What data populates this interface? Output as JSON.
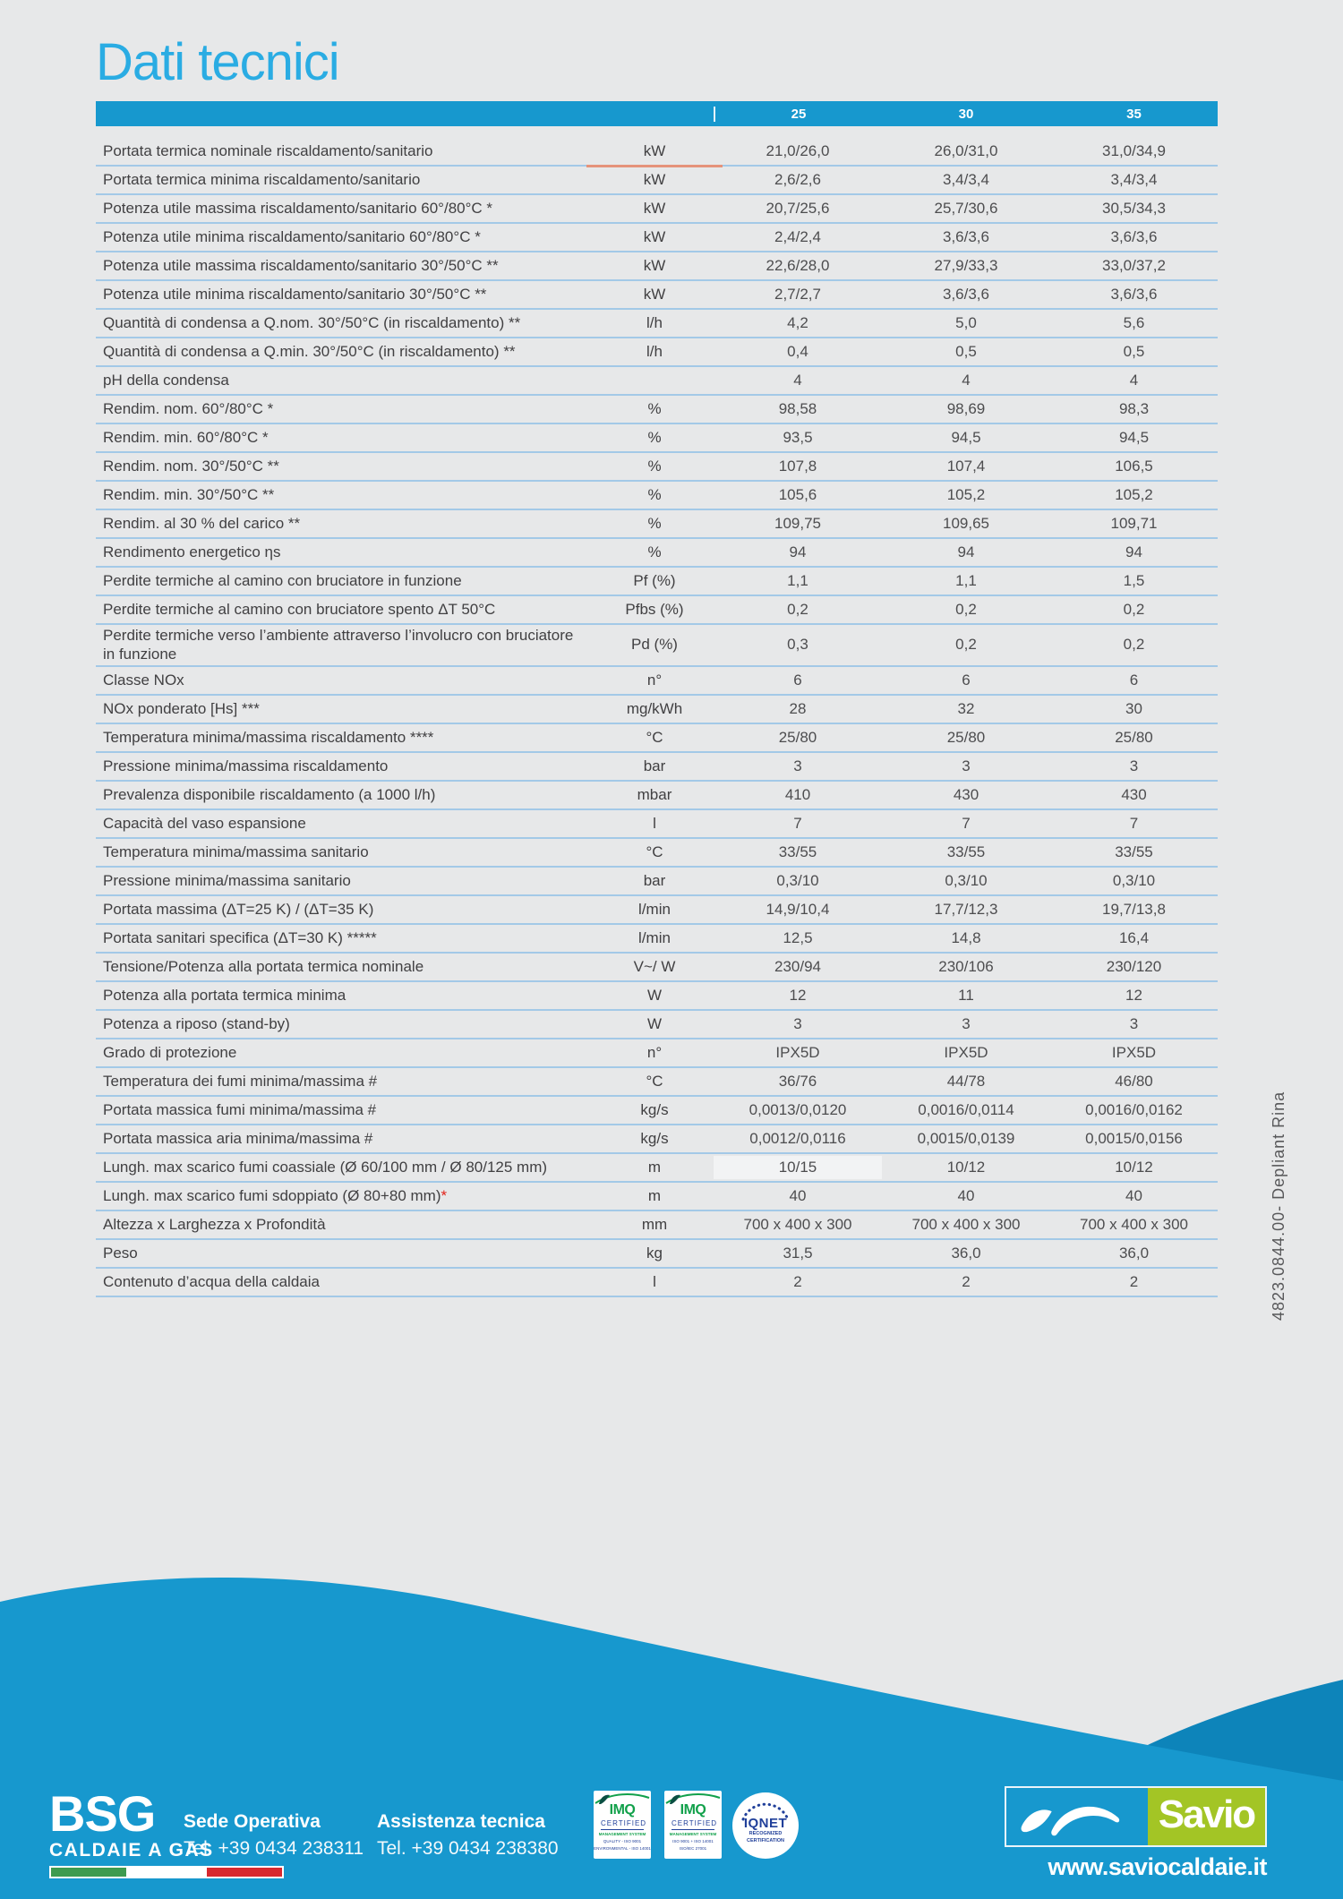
{
  "page": {
    "title": "Dati tecnici",
    "side_code": "4823.0844.00- Depliant Rina"
  },
  "colors": {
    "header_blue": "#1798CE",
    "title_blue": "#2AACE3",
    "row_line_blue": "#A3C9E7",
    "accent_orange": "#E5937A",
    "savio_green": "#A3C525",
    "imq_green": "#12A14B",
    "navy": "#21409A",
    "flag_green": "#3E9B4F",
    "flag_red": "#D7282F"
  },
  "table": {
    "header_cols": [
      "25",
      "30",
      "35"
    ],
    "rows": [
      {
        "label": "Portata termica nominale riscaldamento/sanitario",
        "unit": "kW",
        "values": [
          "21,0/26,0",
          "26,0/31,0",
          "31,0/34,9"
        ]
      },
      {
        "label": "Portata termica minima riscaldamento/sanitario",
        "unit": "kW",
        "values": [
          "2,6/2,6",
          "3,4/3,4",
          "3,4/3,4"
        ]
      },
      {
        "label": "Potenza utile massima riscaldamento/sanitario 60°/80°C *",
        "unit": "kW",
        "values": [
          "20,7/25,6",
          "25,7/30,6",
          "30,5/34,3"
        ]
      },
      {
        "label": "Potenza utile minima riscaldamento/sanitario 60°/80°C *",
        "unit": "kW",
        "values": [
          "2,4/2,4",
          "3,6/3,6",
          "3,6/3,6"
        ]
      },
      {
        "label": "Potenza utile massima riscaldamento/sanitario 30°/50°C **",
        "unit": "kW",
        "values": [
          "22,6/28,0",
          "27,9/33,3",
          "33,0/37,2"
        ]
      },
      {
        "label": "Potenza utile minima riscaldamento/sanitario 30°/50°C **",
        "unit": "kW",
        "values": [
          "2,7/2,7",
          "3,6/3,6",
          "3,6/3,6"
        ]
      },
      {
        "label": "Quantità di condensa a Q.nom. 30°/50°C (in riscaldamento) **",
        "unit": "l/h",
        "values": [
          "4,2",
          "5,0",
          "5,6"
        ]
      },
      {
        "label": "Quantità di condensa a Q.min. 30°/50°C (in riscaldamento) **",
        "unit": "l/h",
        "values": [
          "0,4",
          "0,5",
          "0,5"
        ]
      },
      {
        "label": "pH della condensa",
        "unit": "",
        "values": [
          "4",
          "4",
          "4"
        ]
      },
      {
        "label": "Rendim. nom. 60°/80°C *",
        "unit": "%",
        "values": [
          "98,58",
          "98,69",
          "98,3"
        ]
      },
      {
        "label": "Rendim. min. 60°/80°C *",
        "unit": "%",
        "values": [
          "93,5",
          "94,5",
          "94,5"
        ]
      },
      {
        "label": "Rendim. nom. 30°/50°C **",
        "unit": "%",
        "values": [
          "107,8",
          "107,4",
          "106,5"
        ]
      },
      {
        "label": "Rendim. min. 30°/50°C **",
        "unit": "%",
        "values": [
          "105,6",
          "105,2",
          "105,2"
        ]
      },
      {
        "label": "Rendim. al 30 % del carico **",
        "unit": "%",
        "values": [
          "109,75",
          "109,65",
          "109,71"
        ]
      },
      {
        "label": "Rendimento energetico ηs",
        "unit": "%",
        "values": [
          "94",
          "94",
          "94"
        ]
      },
      {
        "label": "Perdite termiche al camino con bruciatore in funzione",
        "unit": "Pf (%)",
        "values": [
          "1,1",
          "1,1",
          "1,5"
        ]
      },
      {
        "label": "Perdite termiche al camino con bruciatore spento ΔT 50°C",
        "unit": "Pfbs (%)",
        "values": [
          "0,2",
          "0,2",
          "0,2"
        ]
      },
      {
        "label": "Perdite termiche verso l’ambiente attraverso l’involucro con bruciatore in funzione",
        "unit": "Pd (%)",
        "values": [
          "0,3",
          "0,2",
          "0,2"
        ]
      },
      {
        "label": "Classe NOx",
        "unit": "n°",
        "values": [
          "6",
          "6",
          "6"
        ]
      },
      {
        "label": "NOx ponderato [Hs] ***",
        "unit": "mg/kWh",
        "values": [
          "28",
          "32",
          "30"
        ]
      },
      {
        "label": "Temperatura minima/massima riscaldamento ****",
        "unit": "°C",
        "values": [
          "25/80",
          "25/80",
          "25/80"
        ]
      },
      {
        "label": "Pressione minima/massima riscaldamento",
        "unit": "bar",
        "values": [
          "3",
          "3",
          "3"
        ]
      },
      {
        "label": "Prevalenza disponibile riscaldamento (a 1000 l/h)",
        "unit": "mbar",
        "values": [
          "410",
          "430",
          "430"
        ]
      },
      {
        "label": "Capacità del vaso espansione",
        "unit": "l",
        "values": [
          "7",
          "7",
          "7"
        ]
      },
      {
        "label": "Temperatura minima/massima sanitario",
        "unit": "°C",
        "values": [
          "33/55",
          "33/55",
          "33/55"
        ]
      },
      {
        "label": "Pressione minima/massima sanitario",
        "unit": "bar",
        "values": [
          "0,3/10",
          "0,3/10",
          "0,3/10"
        ]
      },
      {
        "label": "Portata massima (ΔT=25 K) / (ΔT=35 K)",
        "unit": "l/min",
        "values": [
          "14,9/10,4",
          "17,7/12,3",
          "19,7/13,8"
        ]
      },
      {
        "label": "Portata sanitari specifica (ΔT=30 K) *****",
        "unit": "l/min",
        "values": [
          "12,5",
          "14,8",
          "16,4"
        ]
      },
      {
        "label": "Tensione/Potenza alla portata termica nominale",
        "unit": "V~/ W",
        "values": [
          "230/94",
          "230/106",
          "230/120"
        ]
      },
      {
        "label": "Potenza alla portata termica minima",
        "unit": "W",
        "values": [
          "12",
          "11",
          "12"
        ]
      },
      {
        "label": "Potenza a riposo (stand-by)",
        "unit": "W",
        "values": [
          "3",
          "3",
          "3"
        ]
      },
      {
        "label": "Grado di protezione",
        "unit": "n°",
        "values": [
          "IPX5D",
          "IPX5D",
          "IPX5D"
        ]
      },
      {
        "label": "Temperatura dei fumi minima/massima #",
        "unit": "°C",
        "values": [
          "36/76",
          "44/78",
          "46/80"
        ]
      },
      {
        "label": "Portata massica fumi minima/massima #",
        "unit": "kg/s",
        "values": [
          "0,0013/0,0120",
          "0,0016/0,0114",
          "0,0016/0,0162"
        ]
      },
      {
        "label": "Portata massica aria minima/massima #",
        "unit": "kg/s",
        "values": [
          "0,0012/0,0116",
          "0,0015/0,0139",
          "0,0015/0,0156"
        ]
      },
      {
        "label": "Lungh. max scarico fumi coassiale (Ø 60/100 mm / Ø 80/125 mm)",
        "unit": "m",
        "values": [
          "10/15",
          "10/12",
          "10/12"
        ]
      },
      {
        "label": "Lungh. max scarico fumi sdoppiato (Ø 80+80 mm)",
        "star": "*",
        "unit": "m",
        "values": [
          "40",
          "40",
          "40"
        ]
      },
      {
        "label": "Altezza x Larghezza x Profondità",
        "unit": "mm",
        "values": [
          "700 x 400 x 300",
          "700 x 400 x 300",
          "700 x 400 x 300"
        ]
      },
      {
        "label": "Peso",
        "unit": "kg",
        "values": [
          "31,5",
          "36,0",
          "36,0"
        ]
      },
      {
        "label": "Contenuto d’acqua della caldaia",
        "unit": "l",
        "values": [
          "2",
          "2",
          "2"
        ]
      }
    ]
  },
  "footer": {
    "bsg": {
      "name": "BSG",
      "subtitle": "CALDAIE A GAS"
    },
    "contacts": [
      {
        "title": "Sede Operativa",
        "phone": "Tel. +39 0434 238311"
      },
      {
        "title": "Assistenza tecnica",
        "phone": "Tel. +39 0434 238380"
      }
    ],
    "badges": [
      {
        "brand": "IMQ",
        "label": "CERTIFIED",
        "line1": "MANAGEMENT SYSTEM",
        "line2": "QUALITY - ISO 9001",
        "line3": "ENVIRONMENTAL - ISO 14001"
      },
      {
        "brand": "IMQ",
        "label": "CERTIFIED",
        "line1": "MANAGEMENT SYSTEM",
        "line2": "ISO 9001 + ISO 14001",
        "line3": "ISO/IEC 27001"
      },
      {
        "brand": "IQNET",
        "line1": "RECOGNIZED",
        "line2": "CERTIFICATION"
      }
    ],
    "savio": {
      "name": "Savio",
      "website": "www.saviocaldaie.it"
    }
  }
}
